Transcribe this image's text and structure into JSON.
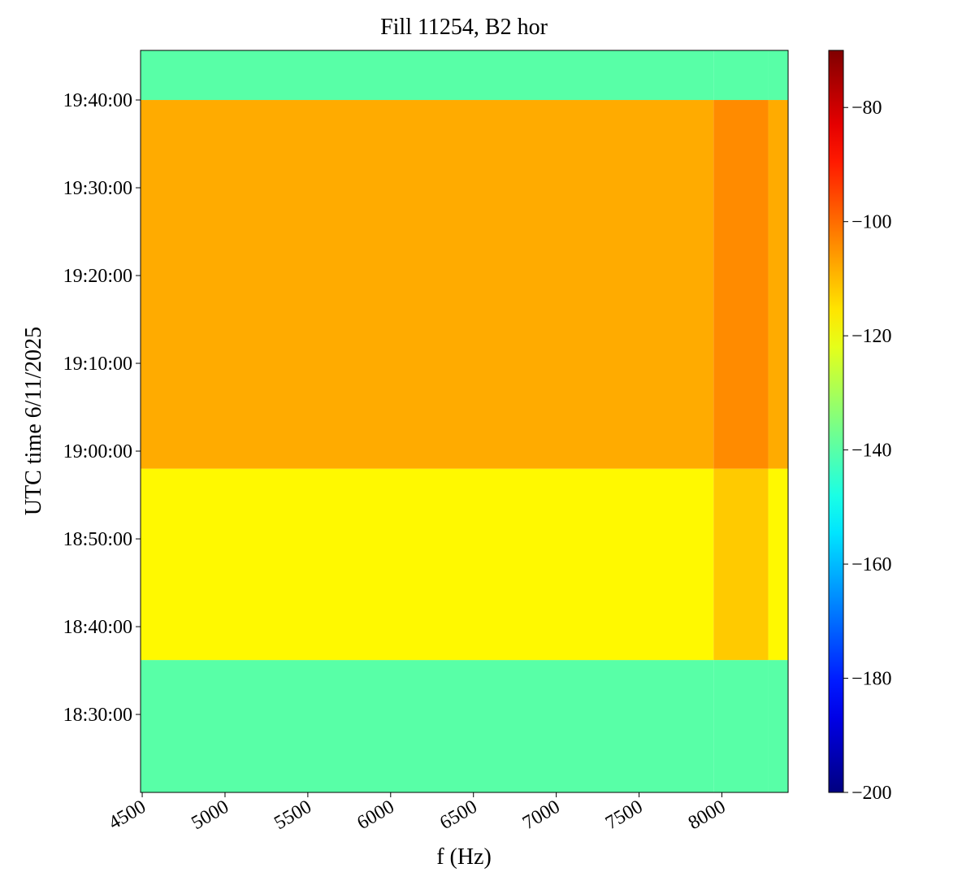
{
  "chart_data": {
    "type": "heatmap",
    "title": "Fill 11254, B2 hor",
    "xlabel": "f (Hz)",
    "ylabel": "UTC time 6/11/2025",
    "colormap": "jet",
    "x_bins": [
      4490,
      7950,
      8280,
      8400
    ],
    "y_bins": [
      66067,
      66972,
      68280,
      70800,
      71139
    ],
    "values": [
      [
        -140,
        -140,
        -140
      ],
      [
        -118,
        -112,
        -118
      ],
      [
        -108,
        -104,
        -108
      ],
      [
        -140,
        -140,
        -140
      ]
    ],
    "xlim": [
      4490,
      8400
    ],
    "xticks": [
      4500,
      5000,
      5500,
      6000,
      6500,
      7000,
      7500,
      8000
    ],
    "ylim": [
      66067,
      71139
    ],
    "yticks": [
      {
        "value": 66600,
        "label": "18:30:00"
      },
      {
        "value": 67200,
        "label": "18:40:00"
      },
      {
        "value": 67800,
        "label": "18:50:00"
      },
      {
        "value": 68400,
        "label": "19:00:00"
      },
      {
        "value": 69000,
        "label": "19:10:00"
      },
      {
        "value": 69600,
        "label": "19:20:00"
      },
      {
        "value": 70200,
        "label": "19:30:00"
      },
      {
        "value": 70800,
        "label": "19:40:00"
      }
    ],
    "clim": [
      -200,
      -70
    ],
    "cticks": [
      {
        "value": -80,
        "label": "−80"
      },
      {
        "value": -100,
        "label": "−100"
      },
      {
        "value": -120,
        "label": "−120"
      },
      {
        "value": -140,
        "label": "−140"
      },
      {
        "value": -160,
        "label": "−160"
      },
      {
        "value": -180,
        "label": "−180"
      },
      {
        "value": -200,
        "label": "−200"
      }
    ]
  }
}
